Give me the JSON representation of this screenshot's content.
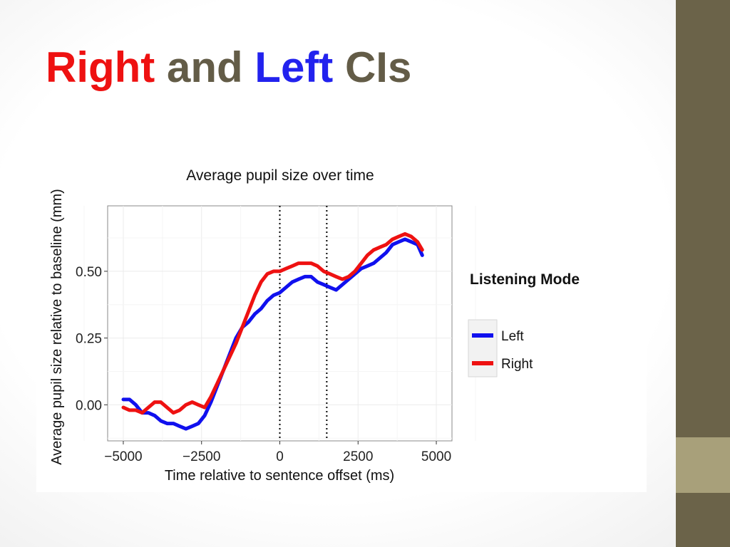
{
  "slide": {
    "title_parts": [
      {
        "text": "Right",
        "color": "#ee1111"
      },
      {
        "text": " and ",
        "color": "#635c47"
      },
      {
        "text": "Left",
        "color": "#2222ee"
      },
      {
        "text": " CIs",
        "color": "#635c47"
      }
    ]
  },
  "colors": {
    "sidebar_dark": "#6b6349",
    "sidebar_light": "#a8a07a",
    "left_series": "#1010ee",
    "right_series": "#ee1111"
  },
  "chart_data": {
    "type": "line",
    "title": "Average pupil size over time",
    "xlabel": "Time relative to sentence offset (ms)",
    "ylabel": "Average pupil size relative to baseline (mm)",
    "xlim": [
      -5500,
      5500
    ],
    "ylim": [
      -0.135,
      0.745
    ],
    "x_ticks": [
      -5000,
      -2500,
      0,
      2500,
      5000
    ],
    "x_tick_labels": [
      "−5000",
      "−2500",
      "0",
      "2500",
      "5000"
    ],
    "y_ticks": [
      0.0,
      0.25,
      0.5
    ],
    "y_tick_labels": [
      "0.00",
      "0.25",
      "0.50"
    ],
    "grid": true,
    "reference_lines_x": [
      0,
      1500
    ],
    "legend": {
      "title": "Listening Mode",
      "position": "right"
    },
    "series": [
      {
        "name": "Left",
        "color": "#1010ee",
        "x": [
          -5000,
          -4800,
          -4600,
          -4400,
          -4200,
          -4000,
          -3800,
          -3600,
          -3400,
          -3200,
          -3000,
          -2800,
          -2600,
          -2400,
          -2200,
          -2000,
          -1800,
          -1600,
          -1400,
          -1200,
          -1000,
          -800,
          -600,
          -400,
          -200,
          0,
          200,
          400,
          600,
          800,
          1000,
          1200,
          1400,
          1600,
          1800,
          2000,
          2200,
          2400,
          2600,
          2800,
          3000,
          3200,
          3400,
          3600,
          3800,
          4000,
          4200,
          4400,
          4550
        ],
        "y": [
          0.02,
          0.02,
          0.0,
          -0.03,
          -0.03,
          -0.04,
          -0.06,
          -0.07,
          -0.07,
          -0.08,
          -0.09,
          -0.08,
          -0.07,
          -0.04,
          0.01,
          0.07,
          0.13,
          0.19,
          0.25,
          0.29,
          0.31,
          0.34,
          0.36,
          0.39,
          0.41,
          0.42,
          0.44,
          0.46,
          0.47,
          0.48,
          0.48,
          0.46,
          0.45,
          0.44,
          0.43,
          0.45,
          0.47,
          0.49,
          0.51,
          0.52,
          0.53,
          0.55,
          0.57,
          0.6,
          0.61,
          0.62,
          0.61,
          0.6,
          0.56
        ]
      },
      {
        "name": "Right",
        "color": "#ee1111",
        "x": [
          -5000,
          -4800,
          -4600,
          -4400,
          -4200,
          -4000,
          -3800,
          -3600,
          -3400,
          -3200,
          -3000,
          -2800,
          -2600,
          -2400,
          -2200,
          -2000,
          -1800,
          -1600,
          -1400,
          -1200,
          -1000,
          -800,
          -600,
          -400,
          -200,
          0,
          200,
          400,
          600,
          800,
          1000,
          1200,
          1400,
          1600,
          1800,
          2000,
          2200,
          2400,
          2600,
          2800,
          3000,
          3200,
          3400,
          3600,
          3800,
          4000,
          4200,
          4400,
          4550
        ],
        "y": [
          -0.01,
          -0.02,
          -0.02,
          -0.03,
          -0.01,
          0.01,
          0.01,
          -0.01,
          -0.03,
          -0.02,
          0.0,
          0.01,
          0.0,
          -0.01,
          0.03,
          0.08,
          0.13,
          0.18,
          0.23,
          0.29,
          0.35,
          0.41,
          0.46,
          0.49,
          0.5,
          0.5,
          0.51,
          0.52,
          0.53,
          0.53,
          0.53,
          0.52,
          0.5,
          0.49,
          0.48,
          0.47,
          0.48,
          0.5,
          0.53,
          0.56,
          0.58,
          0.59,
          0.6,
          0.62,
          0.63,
          0.64,
          0.63,
          0.61,
          0.58
        ]
      }
    ]
  }
}
